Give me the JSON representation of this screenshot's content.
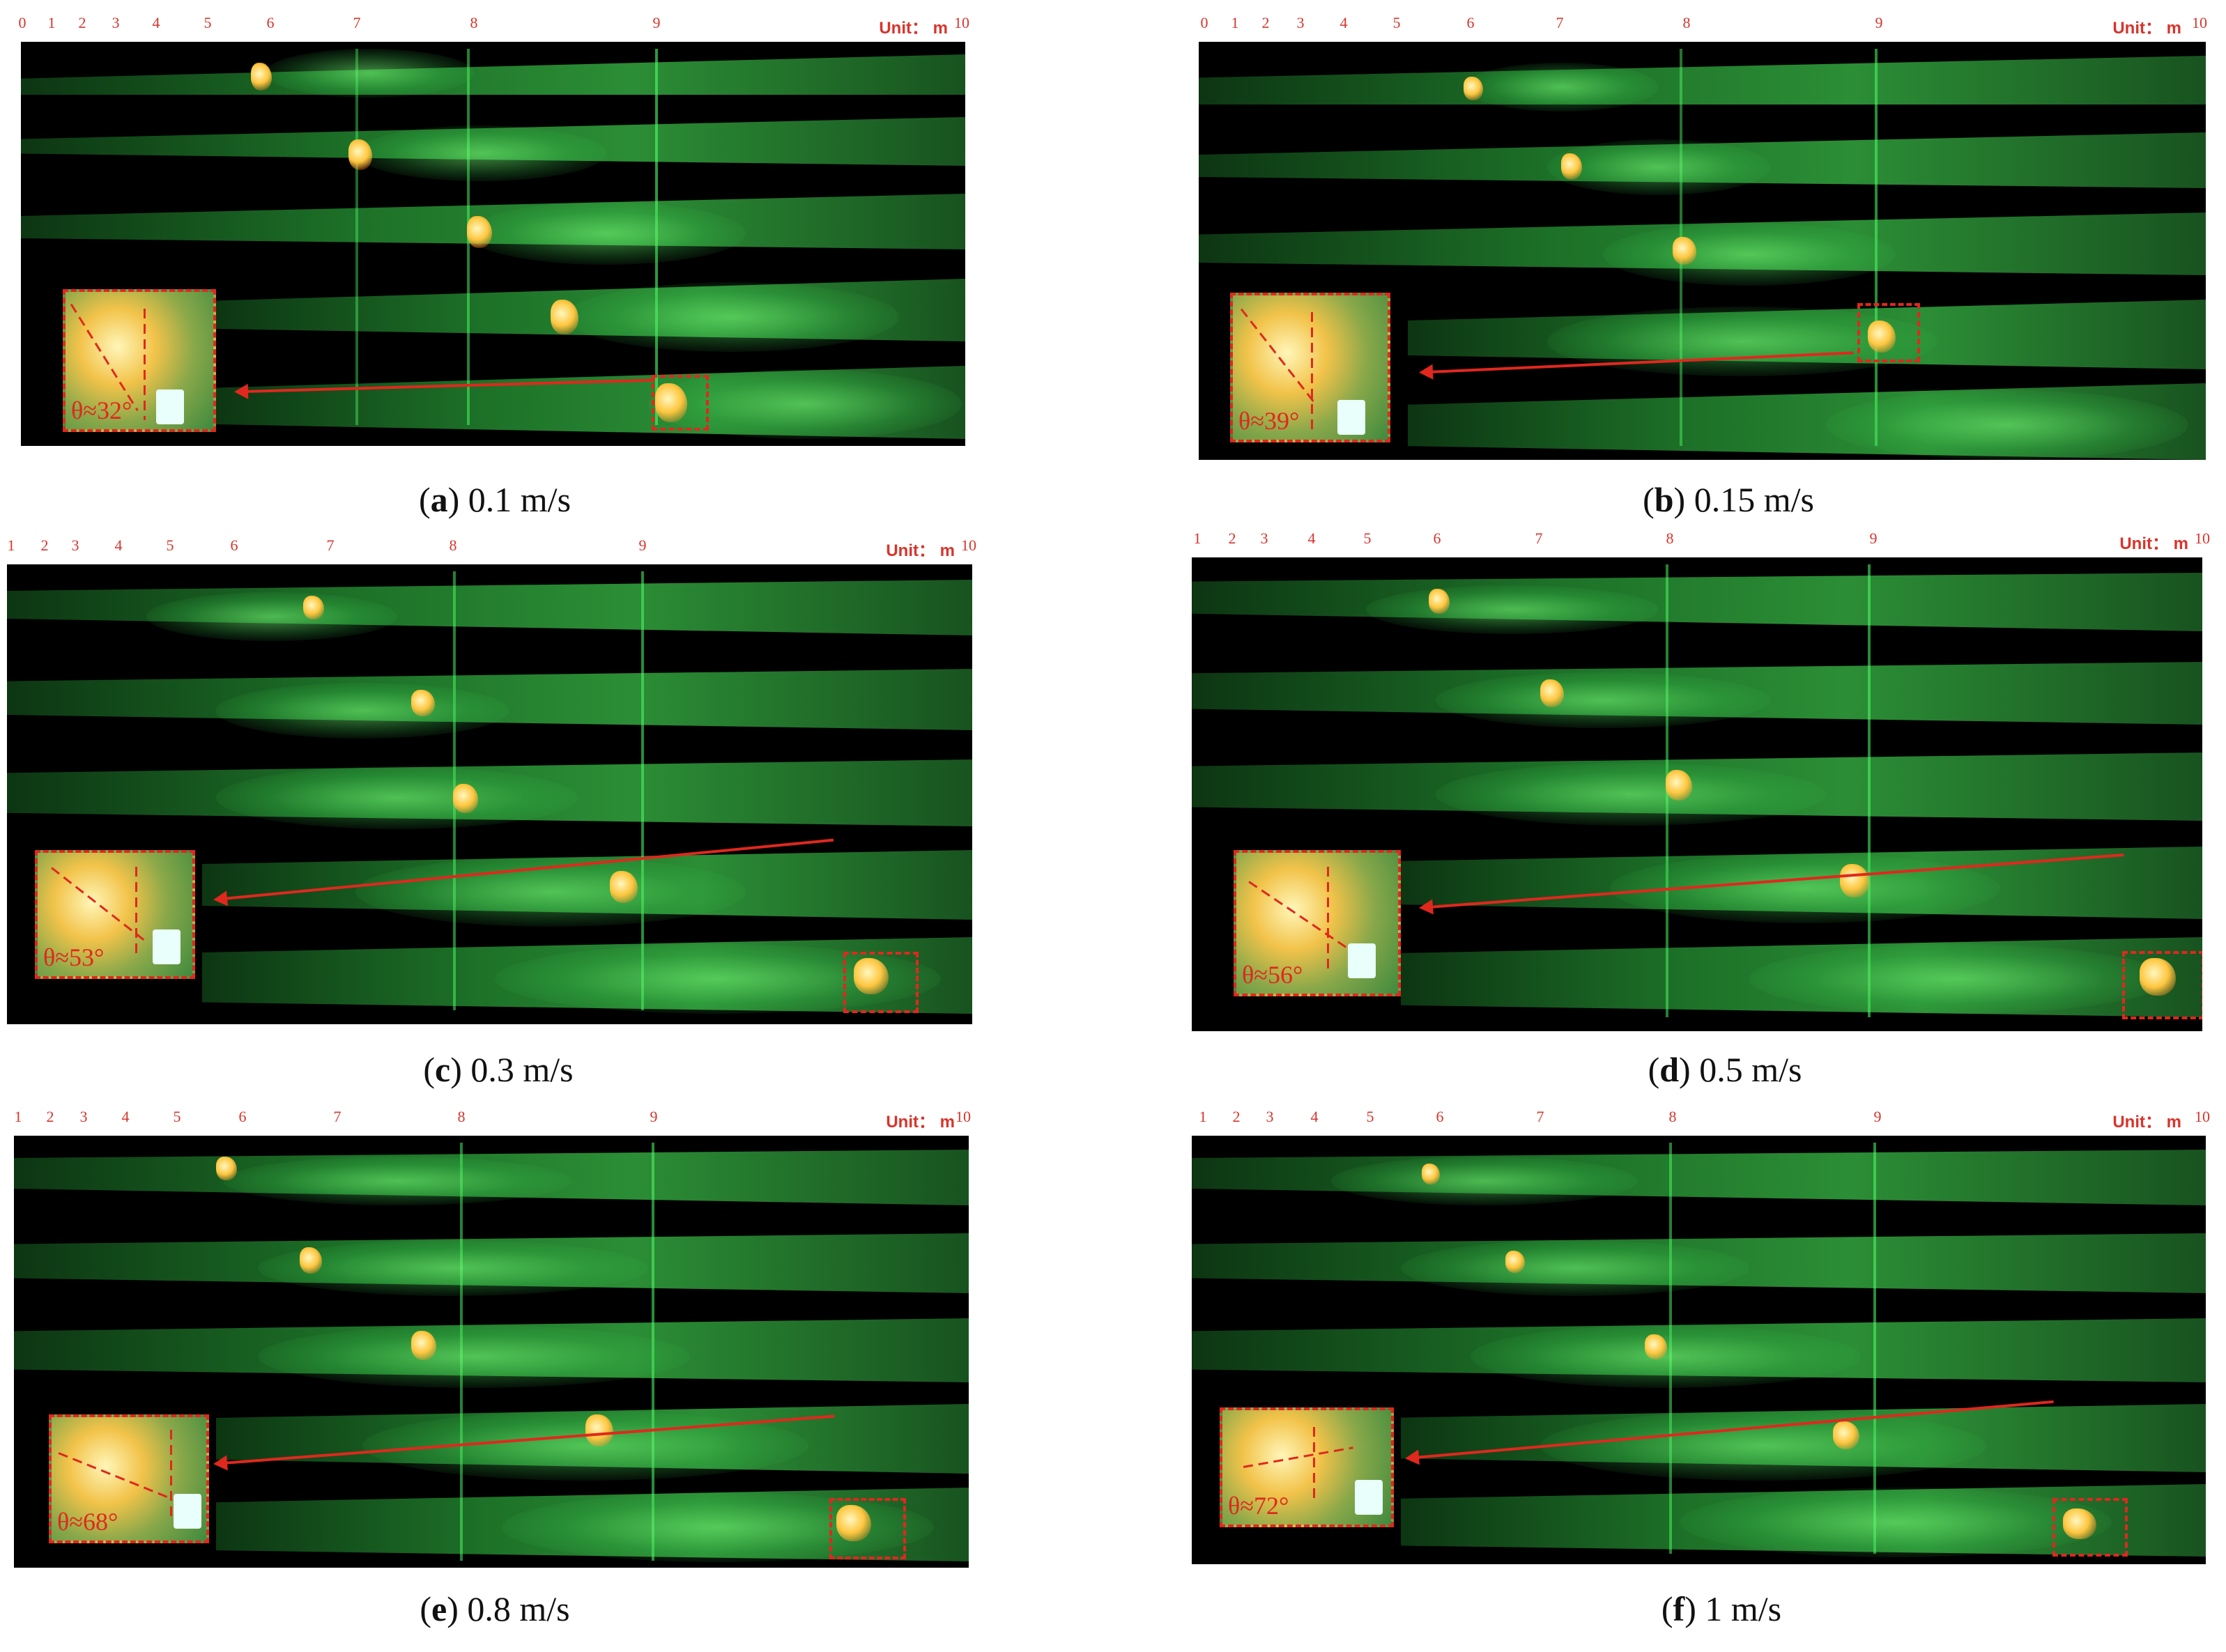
{
  "unit_label": "Unit： m",
  "scale_ticks_a": [
    "0",
    "1",
    "2",
    "3",
    "4",
    "5",
    "6",
    "7",
    "8",
    "9",
    "10"
  ],
  "scale_ticks": [
    "1",
    "2",
    "3",
    "4",
    "5",
    "6",
    "7",
    "8",
    "9",
    "10"
  ],
  "panels": [
    {
      "letter": "a",
      "speed": "0.1 m/s",
      "angle": "θ≈32°"
    },
    {
      "letter": "b",
      "speed": "0.15 m/s",
      "angle": "θ≈39°"
    },
    {
      "letter": "c",
      "speed": "0.3 m/s",
      "angle": "θ≈53°"
    },
    {
      "letter": "d",
      "speed": "0.5 m/s",
      "angle": "θ≈56°"
    },
    {
      "letter": "e",
      "speed": "0.8 m/s",
      "angle": "θ≈68°"
    },
    {
      "letter": "f",
      "speed": "1 m/s",
      "angle": "θ≈72°"
    }
  ],
  "colors": {
    "annotation": "#e0281e",
    "tunnel_green": "#2f9a3a",
    "background": "#000000"
  }
}
